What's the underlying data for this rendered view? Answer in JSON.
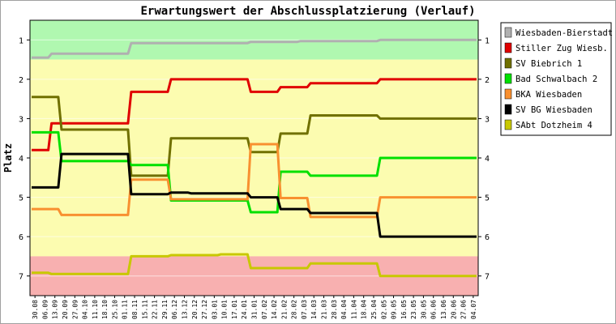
{
  "chart_data": {
    "type": "line",
    "title": "Erwartungswert der Abschlussplatzierung (Verlauf)",
    "ylabel": "Platz",
    "xlabel": "",
    "ylim": [
      0.5,
      7.5
    ],
    "y_reversed": true,
    "yticks": [
      1,
      2,
      3,
      4,
      5,
      6,
      7
    ],
    "zones": [
      {
        "from": 0.5,
        "to": 1.5,
        "color": "#b0f8b0"
      },
      {
        "from": 1.5,
        "to": 6.5,
        "color": "#fcfcb0"
      },
      {
        "from": 6.5,
        "to": 7.5,
        "color": "#f8b0b0"
      }
    ],
    "x": [
      "30.08",
      "06.09",
      "13.09",
      "20.09",
      "27.09",
      "04.10",
      "11.10",
      "18.10",
      "25.10",
      "01.11",
      "08.11",
      "15.11",
      "22.11",
      "29.11",
      "06.12",
      "13.12",
      "20.12",
      "27.12",
      "03.01",
      "10.01",
      "17.01",
      "24.01",
      "31.01",
      "07.02",
      "14.02",
      "21.02",
      "28.02",
      "07.03",
      "14.03",
      "21.03",
      "28.03",
      "04.04",
      "11.04",
      "18.04",
      "25.04",
      "02.05",
      "09.05",
      "16.05",
      "23.05",
      "30.05",
      "06.06",
      "13.06",
      "20.06",
      "27.06",
      "04.07"
    ],
    "series": [
      {
        "name": "Wiesbaden-Bierstadt",
        "color": "#b0b0b0",
        "values": [
          1.45,
          1.45,
          1.35,
          1.35,
          1.35,
          1.35,
          1.35,
          1.35,
          1.35,
          1.35,
          1.08,
          1.08,
          1.08,
          1.08,
          1.08,
          1.08,
          1.08,
          1.08,
          1.08,
          1.08,
          1.08,
          1.08,
          1.05,
          1.05,
          1.05,
          1.05,
          1.05,
          1.03,
          1.03,
          1.03,
          1.03,
          1.03,
          1.03,
          1.03,
          1.03,
          1.0,
          1.0,
          1.0,
          1.0,
          1.0,
          1.0,
          1.0,
          1.0,
          1.0,
          1.0
        ]
      },
      {
        "name": "Stiller Zug Wiesb.",
        "color": "#e00000",
        "values": [
          3.8,
          3.8,
          3.12,
          3.12,
          3.12,
          3.12,
          3.12,
          3.12,
          3.12,
          3.12,
          2.32,
          2.32,
          2.32,
          2.32,
          2.0,
          2.0,
          2.0,
          2.0,
          2.0,
          2.0,
          2.0,
          2.0,
          2.32,
          2.32,
          2.32,
          2.2,
          2.2,
          2.2,
          2.1,
          2.1,
          2.1,
          2.1,
          2.1,
          2.1,
          2.1,
          2.0,
          2.0,
          2.0,
          2.0,
          2.0,
          2.0,
          2.0,
          2.0,
          2.0,
          2.0
        ]
      },
      {
        "name": "SV Biebrich 1",
        "color": "#707000",
        "values": [
          2.45,
          2.45,
          2.45,
          3.28,
          3.28,
          3.28,
          3.28,
          3.28,
          3.28,
          3.28,
          4.45,
          4.45,
          4.45,
          4.45,
          3.5,
          3.5,
          3.5,
          3.5,
          3.5,
          3.5,
          3.5,
          3.5,
          3.85,
          3.85,
          3.85,
          3.38,
          3.38,
          3.38,
          2.92,
          2.92,
          2.92,
          2.92,
          2.92,
          2.92,
          2.92,
          3.0,
          3.0,
          3.0,
          3.0,
          3.0,
          3.0,
          3.0,
          3.0,
          3.0,
          3.0
        ]
      },
      {
        "name": "Bad Schwalbach 2",
        "color": "#00e000",
        "values": [
          3.35,
          3.35,
          3.35,
          4.08,
          4.08,
          4.08,
          4.08,
          4.08,
          4.08,
          4.08,
          4.18,
          4.18,
          4.18,
          4.18,
          5.08,
          5.08,
          5.08,
          5.08,
          5.08,
          5.08,
          5.08,
          5.08,
          5.38,
          5.38,
          5.38,
          4.35,
          4.35,
          4.35,
          4.45,
          4.45,
          4.45,
          4.45,
          4.45,
          4.45,
          4.45,
          4.0,
          4.0,
          4.0,
          4.0,
          4.0,
          4.0,
          4.0,
          4.0,
          4.0,
          4.0
        ]
      },
      {
        "name": "BKA Wiesbaden",
        "color": "#f89030",
        "values": [
          5.3,
          5.3,
          5.3,
          5.45,
          5.45,
          5.45,
          5.45,
          5.45,
          5.45,
          5.45,
          4.55,
          4.55,
          4.55,
          4.55,
          5.05,
          5.05,
          5.05,
          5.05,
          5.05,
          5.05,
          5.05,
          5.05,
          3.65,
          3.65,
          3.65,
          5.02,
          5.02,
          5.02,
          5.5,
          5.5,
          5.5,
          5.5,
          5.5,
          5.5,
          5.5,
          5.0,
          5.0,
          5.0,
          5.0,
          5.0,
          5.0,
          5.0,
          5.0,
          5.0,
          5.0
        ]
      },
      {
        "name": "SV BG Wiesbaden",
        "color": "#000000",
        "values": [
          4.75,
          4.75,
          4.75,
          3.9,
          3.9,
          3.9,
          3.9,
          3.9,
          3.9,
          3.9,
          4.92,
          4.92,
          4.92,
          4.92,
          4.88,
          4.88,
          4.9,
          4.9,
          4.9,
          4.9,
          4.9,
          4.9,
          5.0,
          5.0,
          5.0,
          5.3,
          5.3,
          5.3,
          5.4,
          5.4,
          5.4,
          5.4,
          5.4,
          5.4,
          5.4,
          6.0,
          6.0,
          6.0,
          6.0,
          6.0,
          6.0,
          6.0,
          6.0,
          6.0,
          6.0
        ]
      },
      {
        "name": "SAbt Dotzheim 4",
        "color": "#c8c800",
        "values": [
          6.92,
          6.92,
          6.95,
          6.95,
          6.95,
          6.95,
          6.95,
          6.95,
          6.95,
          6.95,
          6.5,
          6.5,
          6.5,
          6.5,
          6.47,
          6.47,
          6.47,
          6.47,
          6.47,
          6.45,
          6.45,
          6.45,
          6.8,
          6.8,
          6.8,
          6.8,
          6.8,
          6.8,
          6.68,
          6.68,
          6.68,
          6.68,
          6.68,
          6.68,
          6.68,
          7.0,
          7.0,
          7.0,
          7.0,
          7.0,
          7.0,
          7.0,
          7.0,
          7.0,
          7.0
        ]
      }
    ]
  }
}
